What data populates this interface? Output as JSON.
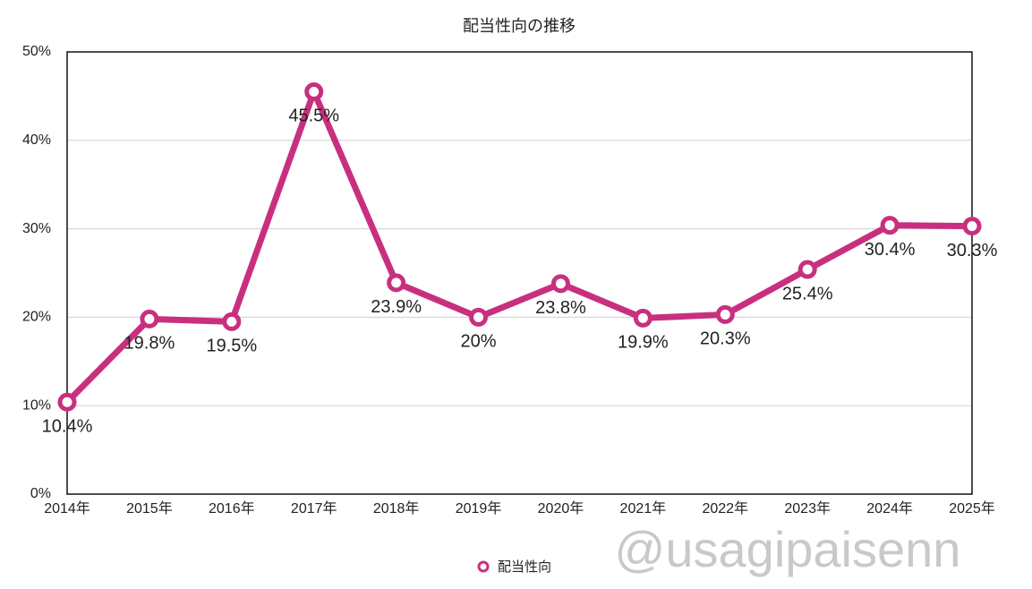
{
  "chart_data": {
    "type": "line",
    "title": "配当性向の推移",
    "categories": [
      "2014年",
      "2015年",
      "2016年",
      "2017年",
      "2018年",
      "2019年",
      "2020年",
      "2021年",
      "2022年",
      "2023年",
      "2024年",
      "2025年"
    ],
    "series": [
      {
        "name": "配当性向",
        "color": "#c8307f",
        "values": [
          10.4,
          19.8,
          19.5,
          45.5,
          23.9,
          20,
          23.8,
          19.9,
          20.3,
          25.4,
          30.4,
          30.3
        ],
        "value_labels": [
          "10.4%",
          "19.8%",
          "19.5%",
          "45.5%",
          "23.9%",
          "20%",
          "23.8%",
          "19.9%",
          "20.3%",
          "25.4%",
          "30.4%",
          "30.3%"
        ]
      }
    ],
    "ylim": [
      0,
      50
    ],
    "yticks": [
      {
        "value": 0,
        "label": "0%"
      },
      {
        "value": 10,
        "label": "10%"
      },
      {
        "value": 20,
        "label": "20%"
      },
      {
        "value": 30,
        "label": "30%"
      },
      {
        "value": 40,
        "label": "40%"
      },
      {
        "value": 50,
        "label": "50%"
      }
    ],
    "grid": true,
    "legend": "bottom",
    "annotation": "@usagipaisenn"
  }
}
